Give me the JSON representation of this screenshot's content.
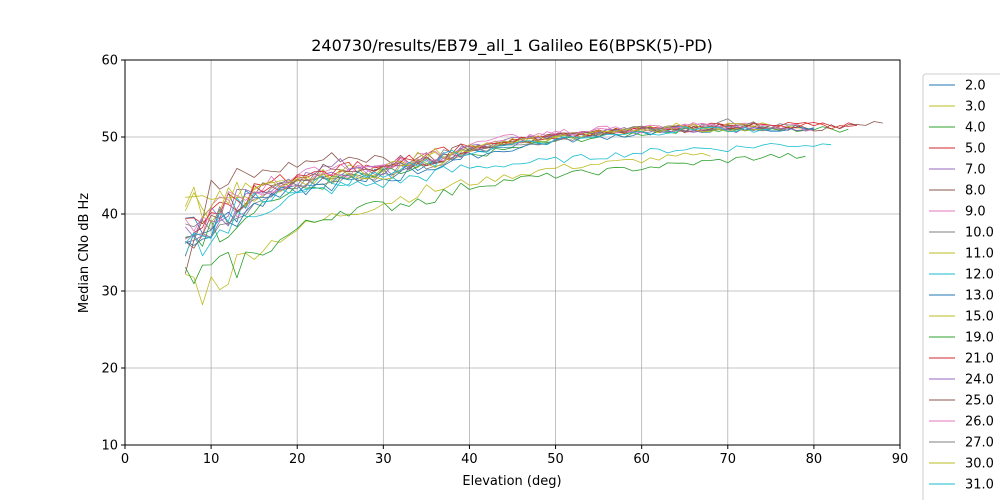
{
  "chart_data": {
    "type": "line",
    "title": "240730/results/EB79_all_1 Galileo E6(BPSK(5)-PD)",
    "xlabel": "Elevation (deg)",
    "ylabel": "Median CNo dB Hz",
    "xlim": [
      0,
      90
    ],
    "ylim": [
      10,
      60
    ],
    "xticks": [
      "0",
      "10",
      "20",
      "30",
      "40",
      "50",
      "60",
      "70",
      "80",
      "90"
    ],
    "yticks": [
      "10",
      "20",
      "30",
      "40",
      "50",
      "60"
    ],
    "grid": true,
    "legend_position": "right-outside",
    "colors": [
      "#1f77b4",
      "#bcbd22",
      "#2ca02c",
      "#d62728",
      "#9467bd",
      "#8c564b",
      "#e377c2",
      "#7f7f7f",
      "#bcbd22",
      "#17becf"
    ],
    "series": [
      {
        "name": "2.0",
        "x": [
          7,
          10,
          15,
          20,
          25,
          30,
          35,
          40,
          45,
          50,
          55,
          60,
          65,
          70,
          75,
          80
        ],
        "y": [
          39.5,
          39.0,
          42.0,
          43.5,
          45.0,
          45.0,
          46.5,
          48.0,
          49.0,
          50.0,
          50.5,
          51.0,
          51.0,
          51.0,
          51.0,
          51.2
        ]
      },
      {
        "name": "3.0",
        "x": [
          7,
          10,
          15,
          20,
          25,
          30,
          35,
          40,
          45,
          50,
          55,
          60,
          65,
          70,
          75,
          80
        ],
        "y": [
          41.0,
          40.0,
          42.5,
          44.0,
          45.0,
          45.5,
          47.0,
          48.5,
          49.5,
          50.0,
          50.5,
          51.0,
          51.5,
          51.5,
          51.0,
          51.0
        ]
      },
      {
        "name": "4.0",
        "x": [
          7,
          10,
          15,
          20,
          25,
          30,
          35,
          40,
          45,
          50,
          55,
          60,
          65,
          70,
          75,
          80,
          84
        ],
        "y": [
          38.0,
          37.5,
          41.0,
          43.0,
          44.5,
          45.0,
          46.0,
          47.5,
          48.5,
          49.5,
          50.0,
          50.5,
          51.0,
          51.0,
          51.0,
          51.0,
          51.0
        ]
      },
      {
        "name": "5.0",
        "x": [
          7,
          10,
          15,
          20,
          25,
          30,
          35,
          40,
          45,
          50,
          55,
          60,
          65,
          70,
          75,
          80,
          85
        ],
        "y": [
          36.0,
          41.0,
          43.5,
          45.0,
          46.0,
          46.5,
          47.5,
          48.5,
          49.5,
          50.0,
          50.5,
          51.0,
          51.5,
          51.5,
          51.5,
          51.5,
          51.5
        ]
      },
      {
        "name": "7.0",
        "x": [
          7,
          10,
          15,
          20,
          25,
          30,
          35,
          40,
          45,
          50,
          55,
          60,
          65,
          70,
          75,
          80
        ],
        "y": [
          37.0,
          39.0,
          42.5,
          44.5,
          45.5,
          46.0,
          47.0,
          48.5,
          49.5,
          50.0,
          50.5,
          51.0,
          51.0,
          51.0,
          51.5,
          51.0
        ]
      },
      {
        "name": "8.0",
        "x": [
          7,
          10,
          15,
          20,
          25,
          30,
          35,
          40,
          45,
          50,
          55,
          60,
          65,
          70,
          75,
          80,
          85,
          88
        ],
        "y": [
          34.0,
          43.0,
          45.0,
          46.5,
          47.5,
          47.0,
          47.5,
          48.5,
          49.5,
          50.0,
          50.5,
          51.0,
          51.0,
          51.5,
          51.5,
          51.0,
          51.5,
          51.8
        ]
      },
      {
        "name": "9.0",
        "x": [
          7,
          10,
          15,
          20,
          25,
          30,
          35,
          40,
          45,
          50,
          55,
          60,
          65,
          70,
          75,
          80
        ],
        "y": [
          38.5,
          40.0,
          43.0,
          45.5,
          46.5,
          46.0,
          47.5,
          49.0,
          50.0,
          50.5,
          51.0,
          51.0,
          51.5,
          51.5,
          51.5,
          51.0
        ]
      },
      {
        "name": "10.0",
        "x": [
          7,
          10,
          15,
          20,
          25,
          30,
          35,
          40,
          45,
          50,
          55,
          60,
          65,
          70,
          75,
          80
        ],
        "y": [
          37.0,
          38.5,
          42.0,
          44.0,
          45.0,
          45.5,
          47.0,
          48.5,
          49.5,
          50.0,
          50.5,
          51.0,
          51.0,
          52.0,
          51.5,
          51.0
        ]
      },
      {
        "name": "11.0",
        "x": [
          7,
          9,
          12,
          15,
          18,
          20,
          25,
          30,
          35,
          40,
          45,
          50,
          55,
          60,
          65,
          68
        ],
        "y": [
          32.0,
          30.0,
          32.5,
          35.0,
          37.0,
          38.0,
          40.0,
          41.5,
          43.0,
          44.0,
          45.0,
          46.0,
          46.5,
          47.0,
          47.5,
          47.5
        ]
      },
      {
        "name": "12.0",
        "x": [
          7,
          10,
          15,
          20,
          25,
          30,
          35,
          40,
          45,
          50,
          55,
          60,
          65,
          70,
          75,
          80,
          82
        ],
        "y": [
          36.0,
          37.0,
          40.0,
          42.5,
          43.5,
          44.0,
          45.0,
          46.0,
          46.5,
          47.0,
          47.5,
          48.0,
          48.5,
          48.5,
          49.0,
          49.0,
          49.0
        ]
      },
      {
        "name": "13.0",
        "x": [
          7,
          10,
          15,
          20,
          25,
          30,
          35,
          40,
          45,
          50,
          55,
          60,
          65,
          70,
          75,
          80
        ],
        "y": [
          38.0,
          38.0,
          41.0,
          43.0,
          44.0,
          44.5,
          46.0,
          47.5,
          48.5,
          49.5,
          50.0,
          50.5,
          51.0,
          51.0,
          51.0,
          51.0
        ]
      },
      {
        "name": "15.0",
        "x": [
          7,
          10,
          15,
          20,
          25,
          30,
          35,
          40,
          45,
          50,
          55,
          60,
          65,
          70,
          75
        ],
        "y": [
          42.0,
          41.0,
          43.0,
          44.0,
          45.5,
          46.0,
          47.5,
          49.0,
          49.5,
          50.0,
          50.5,
          51.0,
          51.5,
          51.5,
          51.5
        ]
      },
      {
        "name": "19.0",
        "x": [
          7,
          9,
          12,
          15,
          18,
          20,
          25,
          30,
          35,
          40,
          45,
          50,
          55,
          60,
          65,
          70,
          75,
          79
        ],
        "y": [
          32.0,
          32.0,
          33.0,
          34.5,
          36.5,
          38.0,
          40.5,
          41.0,
          42.0,
          43.5,
          44.5,
          45.0,
          45.5,
          46.0,
          46.5,
          47.0,
          47.5,
          47.5
        ]
      },
      {
        "name": "21.0",
        "x": [
          7,
          10,
          15,
          20,
          25,
          30,
          35,
          40,
          45,
          50,
          55,
          60,
          65,
          70,
          75,
          80,
          85
        ],
        "y": [
          37.5,
          40.0,
          43.0,
          44.5,
          46.0,
          46.5,
          47.0,
          48.5,
          49.5,
          50.0,
          50.5,
          51.0,
          51.0,
          51.5,
          51.5,
          51.5,
          51.5
        ]
      },
      {
        "name": "24.0",
        "x": [
          7,
          10,
          15,
          20,
          25,
          30,
          35,
          40,
          45,
          50,
          55,
          60,
          65,
          70,
          75
        ],
        "y": [
          38.0,
          39.0,
          42.0,
          44.5,
          46.5,
          45.5,
          47.0,
          48.5,
          49.5,
          50.0,
          50.5,
          51.0,
          51.0,
          51.0,
          51.0
        ]
      },
      {
        "name": "25.0",
        "x": [
          7,
          10,
          15,
          20,
          25,
          30,
          35,
          40,
          45,
          50,
          55,
          60,
          65,
          70,
          75
        ],
        "y": [
          36.0,
          39.5,
          43.0,
          45.0,
          46.0,
          46.0,
          47.0,
          48.5,
          49.5,
          50.0,
          50.5,
          51.0,
          51.0,
          51.5,
          51.5
        ]
      },
      {
        "name": "26.0",
        "x": [
          7,
          10,
          15,
          20,
          25,
          30,
          35,
          40,
          45,
          50,
          55,
          60,
          65,
          70,
          75
        ],
        "y": [
          39.0,
          40.0,
          42.5,
          44.0,
          45.5,
          46.0,
          47.0,
          48.5,
          49.5,
          50.5,
          51.0,
          51.0,
          51.5,
          51.5,
          51.5
        ]
      },
      {
        "name": "27.0",
        "x": [
          7,
          10,
          15,
          20,
          25,
          30,
          35,
          40,
          45,
          50,
          55,
          60,
          65,
          70,
          75
        ],
        "y": [
          38.0,
          39.0,
          42.0,
          44.0,
          45.0,
          45.0,
          46.5,
          48.0,
          49.0,
          49.5,
          50.5,
          51.0,
          51.0,
          51.0,
          51.0
        ]
      },
      {
        "name": "30.0",
        "x": [
          7,
          10,
          15,
          20,
          25,
          30,
          35,
          40,
          45,
          50,
          55,
          60,
          65,
          70,
          75
        ],
        "y": [
          42.5,
          40.5,
          43.0,
          44.5,
          45.5,
          45.0,
          46.5,
          48.5,
          49.5,
          50.0,
          50.5,
          51.0,
          51.0,
          51.0,
          51.0
        ]
      },
      {
        "name": "31.0",
        "x": [
          7,
          10,
          15,
          20,
          25,
          30,
          35,
          40,
          45,
          50,
          55,
          60,
          65,
          70,
          75
        ],
        "y": [
          37.0,
          39.0,
          42.0,
          43.5,
          44.5,
          45.0,
          46.5,
          48.0,
          49.0,
          49.5,
          50.0,
          50.5,
          51.0,
          51.0,
          51.0
        ]
      }
    ]
  }
}
